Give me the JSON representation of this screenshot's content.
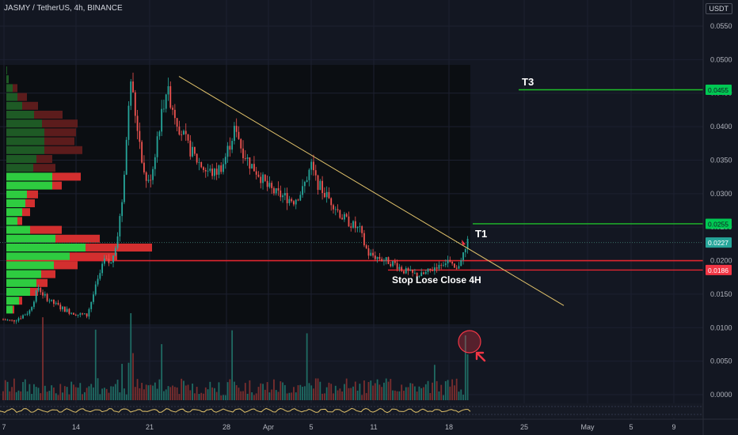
{
  "header": {
    "title": "JASMY / TetherUS, 4h, BINANCE",
    "currency": "USDT"
  },
  "chart_data": {
    "type": "candlestick",
    "symbol": "JASMY / TetherUS",
    "interval": "4h",
    "exchange": "BINANCE",
    "y_unit": "USDT",
    "y_ticks": [
      0.055,
      0.05,
      0.045,
      0.04,
      0.035,
      0.03,
      0.025,
      0.02,
      0.015,
      0.01,
      0.005,
      0.0
    ],
    "ylim": [
      -0.002,
      0.058
    ],
    "x_ticks": [
      "7",
      "14",
      "21",
      "28",
      "Apr",
      "5",
      "11",
      "18",
      "25",
      "May",
      "5",
      "9"
    ],
    "price_path": [
      [
        0,
        0.0112
      ],
      [
        4,
        0.011
      ],
      [
        8,
        0.0116
      ],
      [
        12,
        0.0125
      ],
      [
        16,
        0.016
      ],
      [
        18,
        0.015
      ],
      [
        22,
        0.0138
      ],
      [
        26,
        0.013
      ],
      [
        30,
        0.0124
      ],
      [
        34,
        0.012
      ],
      [
        38,
        0.0118
      ],
      [
        42,
        0.016
      ],
      [
        46,
        0.02
      ],
      [
        49,
        0.0195
      ],
      [
        52,
        0.024
      ],
      [
        54,
        0.029
      ],
      [
        56,
        0.038
      ],
      [
        58,
        0.047
      ],
      [
        60,
        0.042
      ],
      [
        62,
        0.038
      ],
      [
        64,
        0.033
      ],
      [
        66,
        0.0315
      ],
      [
        68,
        0.034
      ],
      [
        70,
        0.0385
      ],
      [
        72,
        0.042
      ],
      [
        74,
        0.0455
      ],
      [
        76,
        0.044
      ],
      [
        78,
        0.042
      ],
      [
        80,
        0.04
      ],
      [
        84,
        0.037
      ],
      [
        88,
        0.035
      ],
      [
        92,
        0.0335
      ],
      [
        96,
        0.033
      ],
      [
        100,
        0.0345
      ],
      [
        104,
        0.0385
      ],
      [
        106,
        0.04
      ],
      [
        108,
        0.037
      ],
      [
        112,
        0.0345
      ],
      [
        116,
        0.033
      ],
      [
        120,
        0.031
      ],
      [
        124,
        0.03
      ],
      [
        128,
        0.0295
      ],
      [
        132,
        0.029
      ],
      [
        136,
        0.0305
      ],
      [
        138,
        0.0325
      ],
      [
        140,
        0.034
      ],
      [
        142,
        0.032
      ],
      [
        146,
        0.03
      ],
      [
        150,
        0.0285
      ],
      [
        154,
        0.0265
      ],
      [
        158,
        0.0255
      ],
      [
        162,
        0.0245
      ],
      [
        164,
        0.0225
      ],
      [
        166,
        0.021
      ],
      [
        170,
        0.0205
      ],
      [
        174,
        0.02
      ],
      [
        178,
        0.0195
      ],
      [
        182,
        0.0185
      ],
      [
        186,
        0.018
      ],
      [
        190,
        0.0178
      ],
      [
        194,
        0.0185
      ],
      [
        198,
        0.0195
      ],
      [
        202,
        0.02
      ],
      [
        204,
        0.019
      ],
      [
        206,
        0.0185
      ],
      [
        208,
        0.0205
      ],
      [
        210,
        0.0215
      ],
      [
        211,
        0.0227
      ]
    ],
    "volume_spike_indices": [
      18,
      42,
      54,
      57,
      58,
      59,
      72,
      104,
      138,
      196,
      210,
      211
    ],
    "levels": [
      {
        "label": "T3",
        "price": 0.0455,
        "color": "#00c853"
      },
      {
        "label": "T1",
        "price": 0.0255,
        "color": "#00c853"
      },
      {
        "label": "",
        "price": 0.0227,
        "color": "#26a69a"
      },
      {
        "label": "Stop Lose Close 4H",
        "price": 0.0186,
        "color": "#f23645"
      }
    ],
    "trendline": {
      "from": [
        0.0475
      ],
      "to": [
        0.0133
      ],
      "color": "#e2c36b"
    },
    "support_line": {
      "price": 0.02,
      "color": "#f23645"
    },
    "price_tags": [
      {
        "text": "0.0455",
        "price": 0.0455,
        "bg": "#00c853",
        "fg": "#131722"
      },
      {
        "text": "0.0255",
        "price": 0.0255,
        "bg": "#00c853",
        "fg": "#131722"
      },
      {
        "text": "0.0227",
        "price": 0.0227,
        "bg": "#26a69a",
        "fg": "#ffffff"
      },
      {
        "text": "0.0186",
        "price": 0.0186,
        "bg": "#f23645",
        "fg": "#ffffff"
      }
    ],
    "volume_profile": [
      {
        "up": 1,
        "down": 0
      },
      {
        "up": 3,
        "down": 0
      },
      {
        "up": 8,
        "down": 6
      },
      {
        "up": 14,
        "down": 12
      },
      {
        "up": 20,
        "down": 20
      },
      {
        "up": 35,
        "down": 36
      },
      {
        "up": 45,
        "down": 45
      },
      {
        "up": 48,
        "down": 40
      },
      {
        "up": 48,
        "down": 38
      },
      {
        "up": 48,
        "down": 48
      },
      {
        "up": 38,
        "down": 20
      },
      {
        "up": 34,
        "down": 28
      },
      {
        "up": 58,
        "down": 36
      },
      {
        "up": 58,
        "down": 12
      },
      {
        "up": 26,
        "down": 14
      },
      {
        "up": 24,
        "down": 12
      },
      {
        "up": 20,
        "down": 10
      },
      {
        "up": 14,
        "down": 6
      },
      {
        "up": 30,
        "down": 40
      },
      {
        "up": 62,
        "down": 56
      },
      {
        "up": 100,
        "down": 84
      },
      {
        "up": 80,
        "down": 60
      },
      {
        "up": 60,
        "down": 30
      },
      {
        "up": 44,
        "down": 18
      },
      {
        "up": 38,
        "down": 14
      },
      {
        "up": 30,
        "down": 10
      },
      {
        "up": 16,
        "down": 4
      },
      {
        "up": 8,
        "down": 2
      }
    ],
    "annotations": [
      {
        "text": "T3"
      },
      {
        "text": "T1"
      },
      {
        "text": "Stop Lose Close 4H"
      }
    ]
  }
}
